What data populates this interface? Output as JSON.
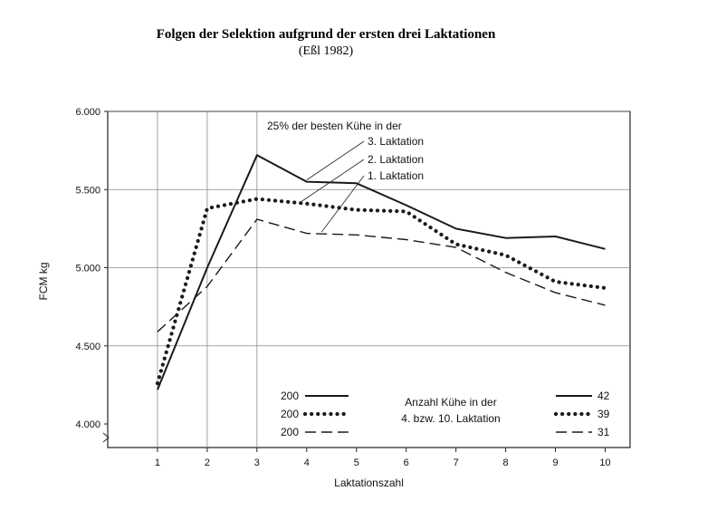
{
  "header": {
    "title": "Folgen der Selektion aufgrund der ersten drei Laktationen",
    "subtitle": "(Eßl 1982)"
  },
  "chart_data": {
    "type": "line",
    "xlabel": "Laktationszahl",
    "ylabel": "FCM kg",
    "x": [
      1,
      2,
      3,
      4,
      5,
      6,
      7,
      8,
      9,
      10
    ],
    "xlim": [
      0,
      10.5
    ],
    "ylim": [
      3950,
      6000
    ],
    "yticks": [
      4000,
      4500,
      5000,
      5500,
      6000
    ],
    "ytick_labels": [
      "4.000",
      "4.500",
      "5.000",
      "5.500",
      "6.000"
    ],
    "xtick_labels": [
      "1",
      "2",
      "3",
      "4",
      "5",
      "6",
      "7",
      "8",
      "9",
      "10"
    ],
    "grid": true,
    "series": [
      {
        "name": "3. Laktation",
        "style": "solid",
        "n_start": "200",
        "n_end": "42",
        "values": [
          4220,
          5000,
          5720,
          5550,
          5540,
          5400,
          5250,
          5190,
          5200,
          5120
        ]
      },
      {
        "name": "2. Laktation",
        "style": "dotted",
        "n_start": "200",
        "n_end": "39",
        "values": [
          4260,
          5380,
          5440,
          5410,
          5370,
          5360,
          5150,
          5080,
          4910,
          4870
        ]
      },
      {
        "name": "1. Laktation",
        "style": "dashed",
        "n_start": "200",
        "n_end": "31",
        "values": [
          4590,
          4880,
          5310,
          5220,
          5210,
          5180,
          5130,
          4970,
          4840,
          4760
        ]
      }
    ],
    "annotations": {
      "group_label": "25% der besten Kühe in der",
      "count_label_line1": "Anzahl Kühe in der",
      "count_label_line2": "4. bzw. 10. Laktation"
    },
    "colors": {
      "line": "#1a1a1a",
      "grid": "#8a8a8a"
    }
  }
}
